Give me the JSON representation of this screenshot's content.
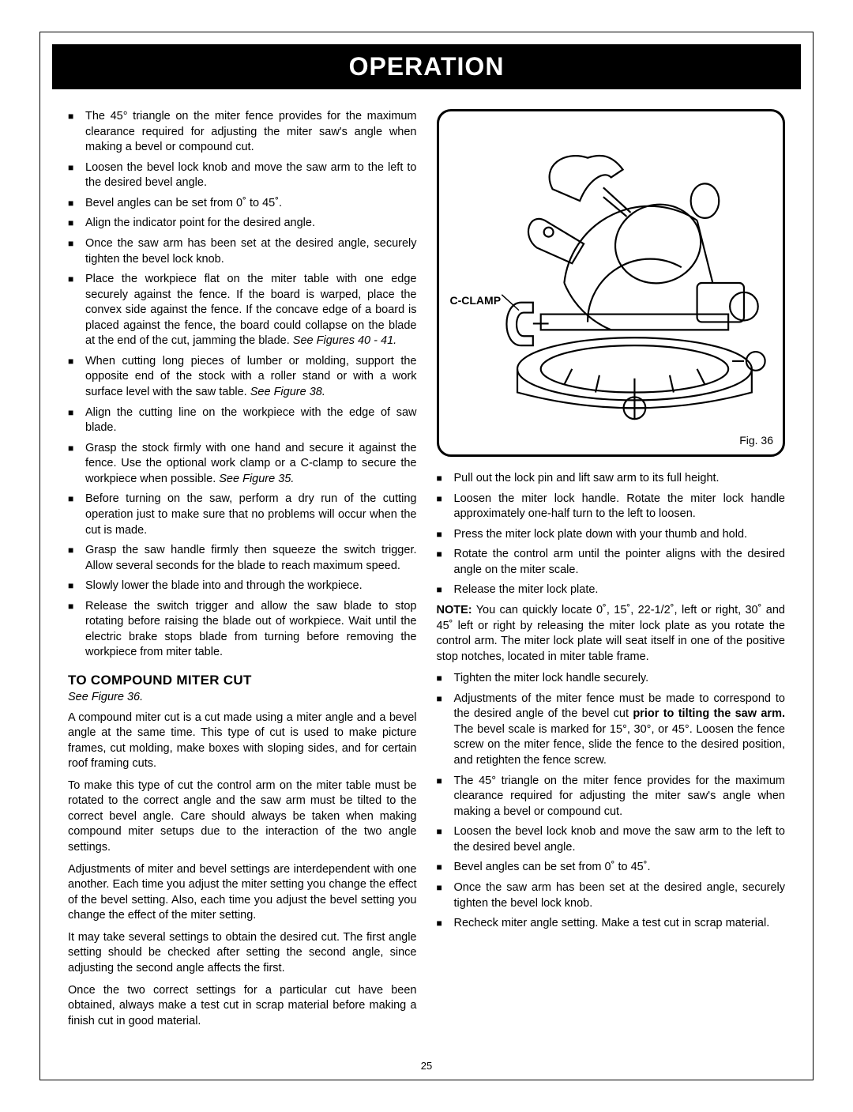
{
  "banner_title": "OPERATION",
  "page_number": "25",
  "figure": {
    "clamp_label": "C-CLAMP",
    "caption": "Fig. 36"
  },
  "left_column": {
    "bullets_top": [
      "The 45° triangle on the miter fence provides for the maximum clearance required for adjusting the miter saw's angle when making a bevel or compound cut.",
      "Loosen the bevel lock knob and move the saw arm to the left to the desired bevel angle.",
      "Bevel angles can be set from 0˚ to 45˚.",
      "Align the indicator point for the desired angle.",
      "Once the saw arm has been set at the desired angle, securely tighten the bevel lock knob.",
      "Place the workpiece flat on the miter table with one edge securely against the fence. If the board is warped, place the convex side against the fence. If the concave edge of a board is placed against the fence, the board could collapse on the blade at the end of the cut, jamming the blade. See Figures 40 - 41.",
      "When cutting long pieces of lumber or molding, support the opposite end of the stock with a roller stand or with a work surface level with the saw table. See Figure 38.",
      "Align the cutting line on the workpiece with the edge of saw blade.",
      "Grasp the stock firmly with one hand and secure it against the fence. Use the optional work clamp or a C-clamp to secure the workpiece when possible. See Figure 35.",
      "Before turning on the saw, perform a dry run of the cutting operation just to make sure that no problems will occur when the cut is made.",
      "Grasp the saw handle firmly then squeeze the switch trigger. Allow several seconds for the blade to reach maximum speed.",
      "Slowly lower the blade into and through the workpiece.",
      "Release the switch trigger and allow the saw blade to stop rotating before raising the blade out of workpiece. Wait until the electric brake stops blade from turning before removing the workpiece from miter table."
    ],
    "heading": "TO COMPOUND MITER CUT",
    "see_figure": "See Figure 36.",
    "paras": [
      "A compound miter cut is a cut made using a miter angle and a bevel angle at the same time. This type of cut is used to make picture frames, cut molding, make boxes with sloping sides, and for certain roof framing cuts.",
      "To make this type of cut the control arm on the miter table must be rotated to the correct angle and the saw arm must be tilted to the correct bevel angle. Care should always be taken when making compound miter setups due to the interaction of the two angle settings.",
      "Adjustments of miter and bevel settings are interdependent with one another. Each time you adjust the miter setting you change the effect of the bevel setting. Also, each time you adjust the bevel setting you change the effect of the miter setting.",
      "It may take several settings to obtain the desired cut. The first angle setting should be checked after setting the second angle, since adjusting the second angle affects the first.",
      "Once the two correct settings for a particular cut have been obtained, always make a test cut in scrap material before making a finish cut in good material."
    ]
  },
  "right_column": {
    "bullets1": [
      "Pull out the lock pin and lift saw arm to its full height.",
      "Loosen the miter lock handle. Rotate the miter lock handle approximately one-half turn to the left to loosen.",
      "Press the miter lock plate down with your thumb and hold.",
      "Rotate the control arm until the pointer aligns with the desired angle on the miter scale.",
      "Release the miter lock plate."
    ],
    "note_label": "NOTE:",
    "note_text": " You can quickly locate 0˚, 15˚, 22-1/2˚, left or right, 30˚ and 45˚ left or right by releasing the miter lock plate as you rotate the control arm. The miter lock plate will seat itself in one of the positive stop notches, located in miter table frame.",
    "bullets2": [
      "Tighten the miter lock handle securely."
    ],
    "adjust_pre": "Adjustments of the miter fence must be made to correspond to the desired angle of the bevel cut ",
    "adjust_bold": "prior to tilting the saw arm.",
    "adjust_post": " The bevel scale is marked for 15°, 30°, or 45°. Loosen the fence screw on the miter fence, slide the fence to the desired position, and retighten the fence screw.",
    "bullets3": [
      "The 45° triangle on the miter fence provides for the maximum clearance required for adjusting the miter saw's angle when making a bevel or compound cut.",
      "Loosen the bevel lock knob and move the saw arm to the left to the desired bevel angle.",
      "Bevel angles can be set from 0˚ to 45˚.",
      "Once the saw arm has been set at the desired angle, securely tighten the bevel lock knob.",
      "Recheck miter angle setting. Make a test cut in scrap material."
    ]
  }
}
